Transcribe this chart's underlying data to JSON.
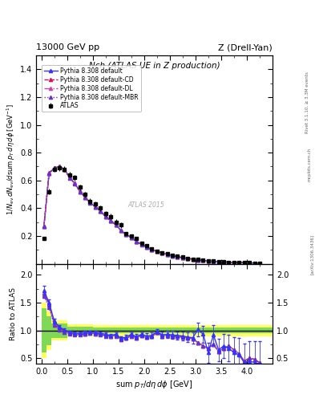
{
  "title_top_left": "13000 GeV pp",
  "title_top_right": "Z (Drell-Yan)",
  "plot_title": "Nch (ATLAS UE in Z production)",
  "ylabel_main": "1/N_{ev} dN_{ev}/dsum p_{T} d#eta d#phi  [GeV^{-1}]",
  "ylabel_ratio": "Ratio to ATLAS",
  "xlabel": "sum p_{T}/d#eta d#phi [GeV]",
  "atlas_x": [
    0.05,
    0.15,
    0.25,
    0.35,
    0.45,
    0.55,
    0.65,
    0.75,
    0.85,
    0.95,
    1.05,
    1.15,
    1.25,
    1.35,
    1.45,
    1.55,
    1.65,
    1.75,
    1.85,
    1.95,
    2.05,
    2.15,
    2.25,
    2.35,
    2.45,
    2.55,
    2.65,
    2.75,
    2.85,
    2.95,
    3.05,
    3.15,
    3.25,
    3.35,
    3.45,
    3.55,
    3.65,
    3.75,
    3.85,
    3.95,
    4.05,
    4.15,
    4.25
  ],
  "atlas_y": [
    0.18,
    0.52,
    0.68,
    0.69,
    0.68,
    0.64,
    0.62,
    0.55,
    0.5,
    0.45,
    0.43,
    0.4,
    0.36,
    0.34,
    0.3,
    0.28,
    0.22,
    0.2,
    0.18,
    0.15,
    0.13,
    0.11,
    0.09,
    0.08,
    0.07,
    0.06,
    0.055,
    0.047,
    0.04,
    0.035,
    0.03,
    0.026,
    0.022,
    0.019,
    0.016,
    0.014,
    0.012,
    0.01,
    0.009,
    0.008,
    0.007,
    0.006,
    0.005
  ],
  "atlas_yerr": [
    0.01,
    0.02,
    0.02,
    0.02,
    0.02,
    0.02,
    0.02,
    0.02,
    0.02,
    0.02,
    0.02,
    0.02,
    0.02,
    0.02,
    0.02,
    0.02,
    0.01,
    0.01,
    0.01,
    0.01,
    0.01,
    0.01,
    0.005,
    0.005,
    0.005,
    0.005,
    0.004,
    0.004,
    0.003,
    0.003,
    0.003,
    0.003,
    0.002,
    0.002,
    0.002,
    0.002,
    0.001,
    0.001,
    0.001,
    0.001,
    0.001,
    0.001,
    0.001
  ],
  "py_x": [
    0.05,
    0.15,
    0.25,
    0.35,
    0.45,
    0.55,
    0.65,
    0.75,
    0.85,
    0.95,
    1.05,
    1.15,
    1.25,
    1.35,
    1.45,
    1.55,
    1.65,
    1.75,
    1.85,
    1.95,
    2.05,
    2.15,
    2.25,
    2.35,
    2.45,
    2.55,
    2.65,
    2.75,
    2.85,
    2.95,
    3.05,
    3.15,
    3.25,
    3.35,
    3.45,
    3.55,
    3.65,
    3.75,
    3.85,
    3.95,
    4.05,
    4.15,
    4.25
  ],
  "py_def_y": [
    0.27,
    0.65,
    0.69,
    0.7,
    0.68,
    0.62,
    0.58,
    0.52,
    0.48,
    0.44,
    0.41,
    0.38,
    0.34,
    0.31,
    0.28,
    0.24,
    0.21,
    0.19,
    0.16,
    0.14,
    0.12,
    0.1,
    0.09,
    0.078,
    0.067,
    0.058,
    0.05,
    0.043,
    0.037,
    0.032,
    0.027,
    0.024,
    0.02,
    0.017,
    0.015,
    0.013,
    0.011,
    0.009,
    0.008,
    0.007,
    0.006,
    0.005,
    0.004
  ],
  "py_cd_y": [
    0.27,
    0.655,
    0.692,
    0.702,
    0.681,
    0.622,
    0.581,
    0.522,
    0.482,
    0.442,
    0.412,
    0.382,
    0.342,
    0.312,
    0.282,
    0.242,
    0.212,
    0.192,
    0.162,
    0.142,
    0.122,
    0.102,
    0.092,
    0.08,
    0.069,
    0.06,
    0.052,
    0.045,
    0.039,
    0.034,
    0.028,
    0.025,
    0.021,
    0.018,
    0.016,
    0.014,
    0.012,
    0.01,
    0.009,
    0.008,
    0.007,
    0.006,
    0.004
  ],
  "py_dl_y": [
    0.27,
    0.653,
    0.69,
    0.7,
    0.679,
    0.62,
    0.579,
    0.52,
    0.48,
    0.44,
    0.41,
    0.38,
    0.34,
    0.31,
    0.28,
    0.24,
    0.21,
    0.19,
    0.16,
    0.14,
    0.12,
    0.1,
    0.09,
    0.079,
    0.068,
    0.059,
    0.051,
    0.044,
    0.038,
    0.033,
    0.027,
    0.024,
    0.02,
    0.017,
    0.015,
    0.013,
    0.011,
    0.009,
    0.008,
    0.007,
    0.006,
    0.005,
    0.004
  ],
  "py_mbr_y": [
    0.27,
    0.652,
    0.689,
    0.699,
    0.678,
    0.619,
    0.578,
    0.519,
    0.479,
    0.439,
    0.409,
    0.379,
    0.339,
    0.309,
    0.279,
    0.239,
    0.209,
    0.189,
    0.159,
    0.139,
    0.119,
    0.099,
    0.089,
    0.078,
    0.067,
    0.058,
    0.05,
    0.043,
    0.037,
    0.032,
    0.027,
    0.024,
    0.02,
    0.017,
    0.015,
    0.013,
    0.011,
    0.009,
    0.008,
    0.007,
    0.006,
    0.005,
    0.004
  ],
  "ratio_def_y": [
    1.72,
    1.5,
    1.17,
    1.06,
    1.01,
    0.97,
    0.95,
    0.95,
    0.96,
    0.97,
    0.96,
    0.95,
    0.93,
    0.91,
    0.93,
    0.86,
    0.88,
    0.93,
    0.89,
    0.93,
    0.9,
    0.91,
    0.98,
    0.92,
    0.93,
    0.92,
    0.91,
    0.9,
    0.88,
    0.87,
    1.02,
    0.93,
    0.6,
    0.92,
    0.65,
    0.72,
    0.68,
    0.6,
    0.56,
    0.42,
    0.45,
    0.42,
    0.4
  ],
  "ratio_cd_y": [
    1.68,
    1.47,
    1.14,
    1.04,
    0.99,
    0.96,
    0.93,
    0.93,
    0.94,
    0.96,
    0.95,
    0.93,
    0.91,
    0.9,
    0.91,
    0.85,
    0.87,
    0.91,
    0.87,
    0.91,
    0.88,
    0.89,
    0.96,
    0.9,
    0.91,
    0.9,
    0.89,
    0.88,
    0.87,
    0.85,
    0.78,
    0.72,
    0.68,
    0.75,
    0.62,
    0.68,
    0.72,
    0.65,
    0.58,
    0.45,
    0.5,
    0.48,
    0.42
  ],
  "ratio_dl_y": [
    1.65,
    1.44,
    1.12,
    1.02,
    0.98,
    0.95,
    0.93,
    0.93,
    0.94,
    0.95,
    0.94,
    0.93,
    0.91,
    0.89,
    0.91,
    0.84,
    0.86,
    0.9,
    0.87,
    0.91,
    0.88,
    0.89,
    0.96,
    0.9,
    0.91,
    0.9,
    0.89,
    0.88,
    0.87,
    0.85,
    0.78,
    0.72,
    0.68,
    0.75,
    0.62,
    0.68,
    0.72,
    0.65,
    0.58,
    0.45,
    0.5,
    0.48,
    0.42
  ],
  "ratio_mbr_y": [
    1.62,
    1.42,
    1.1,
    1.01,
    0.97,
    0.94,
    0.92,
    0.92,
    0.93,
    0.95,
    0.94,
    0.92,
    0.9,
    0.89,
    0.9,
    0.84,
    0.86,
    0.9,
    0.87,
    0.91,
    0.88,
    0.89,
    0.96,
    0.9,
    0.91,
    0.9,
    0.89,
    0.88,
    0.87,
    0.85,
    0.78,
    0.72,
    0.68,
    0.75,
    0.62,
    0.68,
    0.72,
    0.65,
    0.58,
    0.45,
    0.5,
    0.48,
    0.42
  ],
  "ratio_yerr_def": [
    0.08,
    0.06,
    0.04,
    0.03,
    0.03,
    0.03,
    0.03,
    0.03,
    0.03,
    0.03,
    0.03,
    0.03,
    0.03,
    0.03,
    0.03,
    0.04,
    0.04,
    0.04,
    0.04,
    0.04,
    0.05,
    0.05,
    0.05,
    0.06,
    0.06,
    0.07,
    0.07,
    0.08,
    0.09,
    0.1,
    0.12,
    0.15,
    0.18,
    0.18,
    0.2,
    0.22,
    0.24,
    0.28,
    0.3,
    0.35,
    0.35,
    0.38,
    0.4
  ],
  "band_x_edges": [
    0.0,
    0.1,
    0.2,
    0.5,
    1.0,
    1.5,
    2.0,
    2.5,
    3.0,
    3.5,
    4.0,
    4.5
  ],
  "band_y_lo": [
    0.5,
    0.65,
    0.82,
    0.89,
    0.9,
    0.9,
    0.9,
    0.9,
    0.9,
    0.9,
    0.9,
    0.9
  ],
  "band_y_hi": [
    1.5,
    1.35,
    1.18,
    1.11,
    1.1,
    1.1,
    1.1,
    1.1,
    1.1,
    1.1,
    1.1,
    1.1
  ],
  "band2_y_lo": [
    0.6,
    0.74,
    0.87,
    0.93,
    0.95,
    0.95,
    0.95,
    0.95,
    0.95,
    0.95,
    0.95,
    0.95
  ],
  "band2_y_hi": [
    1.4,
    1.26,
    1.13,
    1.07,
    1.05,
    1.05,
    1.05,
    1.05,
    1.05,
    1.05,
    1.05,
    1.05
  ],
  "color_def": "#3333ff",
  "color_cd": "#dd1155",
  "color_dl": "#cc44aa",
  "color_mbr": "#6633cc",
  "color_atlas": "#000000",
  "color_yellow": "#ffff44",
  "color_green": "#55cc55",
  "xlim": [
    -0.1,
    4.5
  ],
  "ylim_main": [
    0.0,
    1.5
  ],
  "ylim_ratio": [
    0.4,
    2.2
  ],
  "yticks_main": [
    0.2,
    0.4,
    0.6,
    0.8,
    1.0,
    1.2,
    1.4
  ],
  "yticks_ratio": [
    0.5,
    1.0,
    1.5,
    2.0
  ],
  "xticks": [
    0.0,
    0.5,
    1.0,
    1.5,
    2.0,
    2.5,
    3.0,
    3.5,
    4.0
  ]
}
